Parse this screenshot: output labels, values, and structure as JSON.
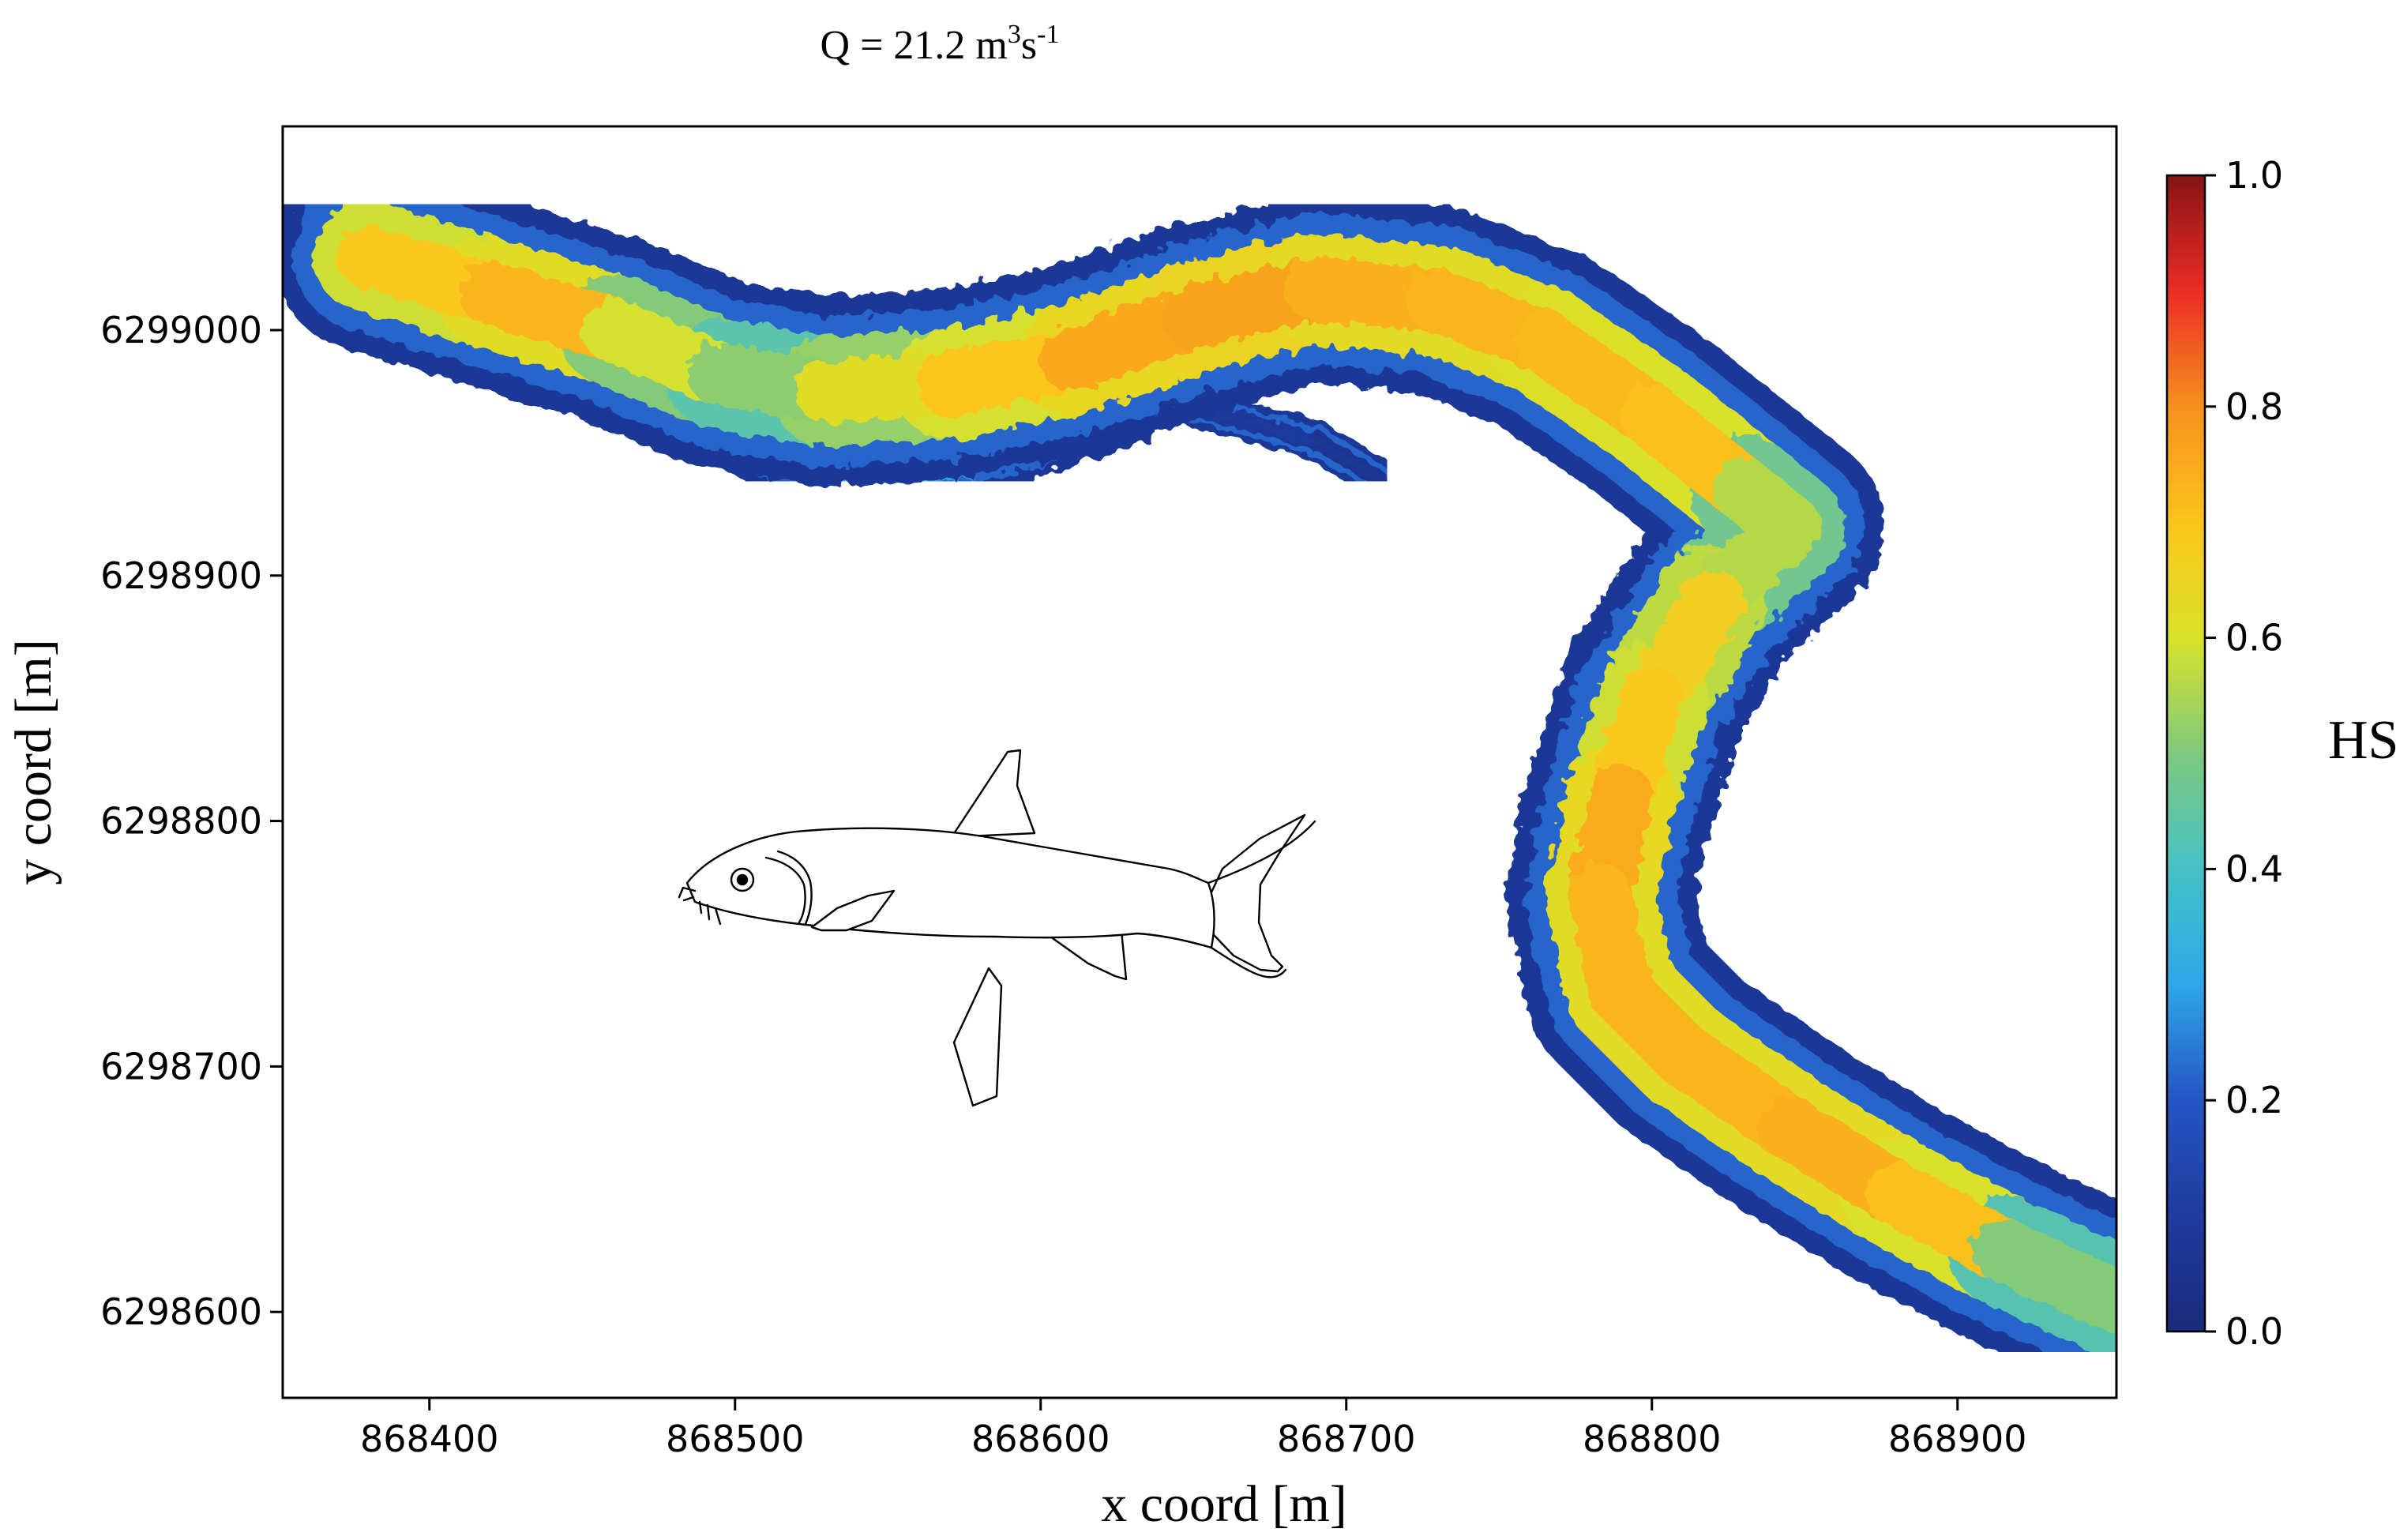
{
  "chart_data": {
    "type": "heatmap",
    "title_prefix": "Q = 21.2 m",
    "title_sup1": "3",
    "title_mid": "s",
    "title_sup2": "-1",
    "xlabel": "x coord [m]",
    "ylabel": "y coord [m]",
    "xlim": [
      868352,
      868952
    ],
    "ylim": [
      6298565,
      6299083
    ],
    "x_ticks": [
      868400,
      868500,
      868600,
      868700,
      868800,
      868900
    ],
    "x_tick_labels": [
      "868400",
      "868500",
      "868600",
      "868700",
      "868800",
      "868900"
    ],
    "y_ticks": [
      6298600,
      6298700,
      6298800,
      6298900,
      6299000
    ],
    "y_tick_labels": [
      "6298600",
      "6298700",
      "6298800",
      "6298900",
      "6299000"
    ],
    "colorbar": {
      "label": "HSI",
      "range": [
        0.0,
        1.0
      ],
      "ticks": [
        0.0,
        0.2,
        0.4,
        0.6,
        0.8,
        1.0
      ],
      "tick_labels": [
        "0.0",
        "0.2",
        "0.4",
        "0.6",
        "0.8",
        "1.0"
      ],
      "colormap": "jet"
    },
    "river_centerline": [
      {
        "x": 868380,
        "y": 6299030,
        "hsi": 0.66
      },
      {
        "x": 868420,
        "y": 6299015,
        "hsi": 0.72
      },
      {
        "x": 868460,
        "y": 6299000,
        "hsi": 0.74
      },
      {
        "x": 868495,
        "y": 6298982,
        "hsi": 0.45
      },
      {
        "x": 868530,
        "y": 6298975,
        "hsi": 0.58
      },
      {
        "x": 868570,
        "y": 6298978,
        "hsi": 0.66
      },
      {
        "x": 868610,
        "y": 6298988,
        "hsi": 0.74
      },
      {
        "x": 868650,
        "y": 6299005,
        "hsi": 0.77
      },
      {
        "x": 868690,
        "y": 6299017,
        "hsi": 0.76
      },
      {
        "x": 868730,
        "y": 6299012,
        "hsi": 0.72
      },
      {
        "x": 868765,
        "y": 6298995,
        "hsi": 0.74
      },
      {
        "x": 868800,
        "y": 6298965,
        "hsi": 0.7
      },
      {
        "x": 868830,
        "y": 6298935,
        "hsi": 0.72
      },
      {
        "x": 868845,
        "y": 6298920,
        "hsi": 0.4
      },
      {
        "x": 868820,
        "y": 6298890,
        "hsi": 0.72
      },
      {
        "x": 868800,
        "y": 6298850,
        "hsi": 0.62
      },
      {
        "x": 868790,
        "y": 6298810,
        "hsi": 0.76
      },
      {
        "x": 868783,
        "y": 6298770,
        "hsi": 0.74
      },
      {
        "x": 868790,
        "y": 6298730,
        "hsi": 0.72
      },
      {
        "x": 868810,
        "y": 6298705,
        "hsi": 0.74
      },
      {
        "x": 868845,
        "y": 6298675,
        "hsi": 0.72
      },
      {
        "x": 868880,
        "y": 6298648,
        "hsi": 0.76
      },
      {
        "x": 868915,
        "y": 6298625,
        "hsi": 0.66
      },
      {
        "x": 868950,
        "y": 6298605,
        "hsi": 0.35
      }
    ],
    "side_channel": [
      {
        "x": 868485,
        "y": 6298970,
        "hsi": 0.15
      },
      {
        "x": 868510,
        "y": 6298950,
        "hsi": 0.3
      },
      {
        "x": 868540,
        "y": 6298940,
        "hsi": 0.35
      },
      {
        "x": 868575,
        "y": 6298945,
        "hsi": 0.4
      },
      {
        "x": 868605,
        "y": 6298958,
        "hsi": 0.35
      },
      {
        "x": 868630,
        "y": 6298968,
        "hsi": 0.2
      }
    ],
    "side_branch": [
      {
        "x": 868645,
        "y": 6298970,
        "hsi": 0.1
      },
      {
        "x": 868690,
        "y": 6298955,
        "hsi": 0.1
      },
      {
        "x": 868710,
        "y": 6298940,
        "hsi": 0.05
      }
    ],
    "fish_illustration": "barbel-fish-outline"
  }
}
